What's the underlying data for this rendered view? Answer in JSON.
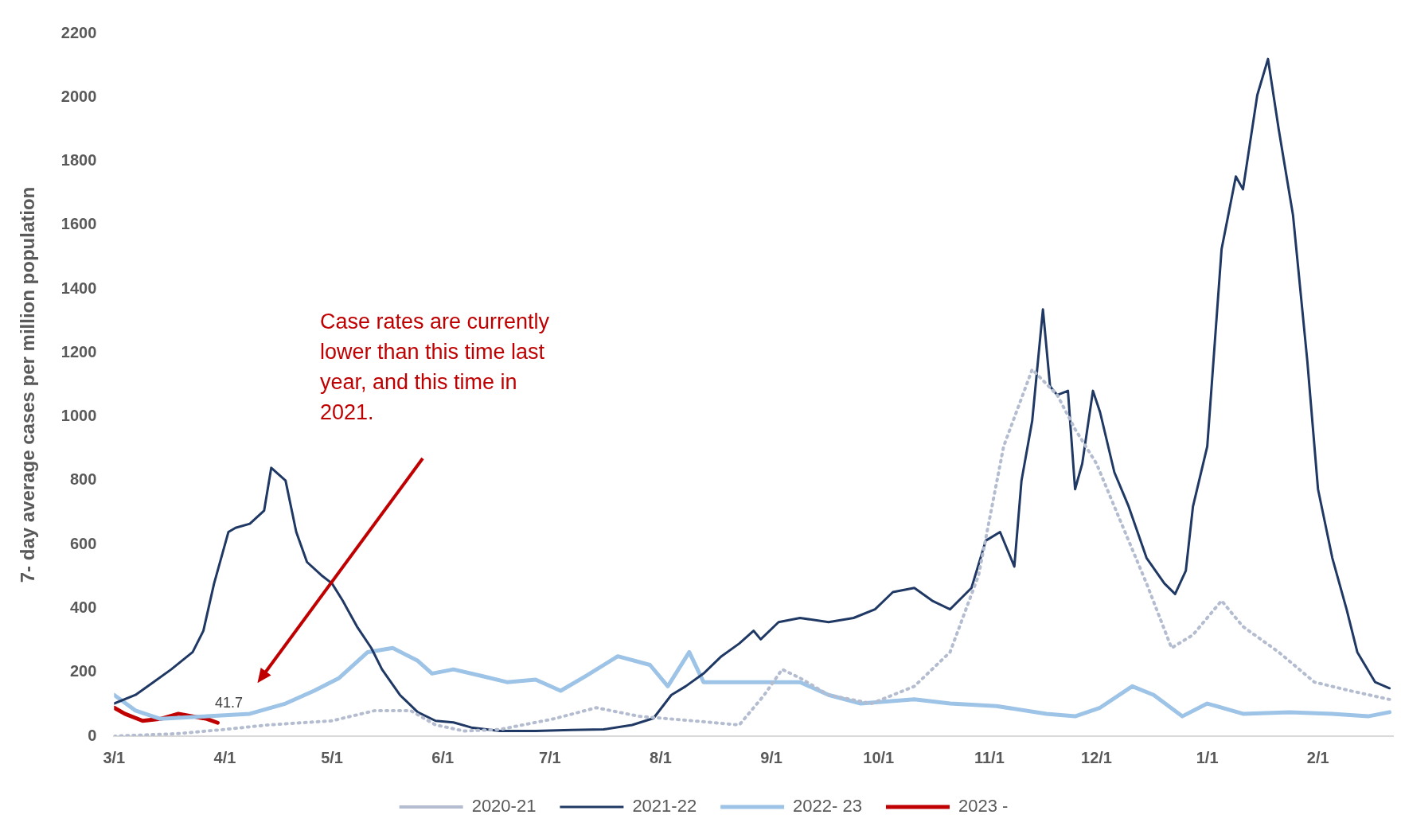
{
  "chart_data": {
    "type": "line",
    "ylabel": "7- day average cases per million population",
    "xlim": [
      "2021-03-01",
      "2022-02-22"
    ],
    "xticks": [
      {
        "value": "2021-03-01",
        "label": "3/1"
      },
      {
        "value": "2021-04-01",
        "label": "4/1"
      },
      {
        "value": "2021-05-01",
        "label": "5/1"
      },
      {
        "value": "2021-06-01",
        "label": "6/1"
      },
      {
        "value": "2021-07-01",
        "label": "7/1"
      },
      {
        "value": "2021-08-01",
        "label": "8/1"
      },
      {
        "value": "2021-09-01",
        "label": "9/1"
      },
      {
        "value": "2021-10-01",
        "label": "10/1"
      },
      {
        "value": "2021-11-01",
        "label": "11/1"
      },
      {
        "value": "2021-12-01",
        "label": "12/1"
      },
      {
        "value": "2022-01-01",
        "label": "1/1"
      },
      {
        "value": "2022-02-01",
        "label": "2/1"
      }
    ],
    "ylim": [
      0,
      2200
    ],
    "yticks": [
      0,
      200,
      400,
      600,
      800,
      1000,
      1200,
      1400,
      1600,
      1800,
      2000,
      2200
    ],
    "grid": false,
    "legend": "bottom",
    "marker": "none",
    "annotations": [
      "Case rates are currently lower than this time last year, and this time in 2021.",
      {
        "text": "41.7",
        "x": "2021-03-30",
        "y": 41.7
      }
    ],
    "series": [
      {
        "name": "2020-21",
        "color": "#b4bdd0",
        "line_style": "dotted",
        "x": [
          "2021-03-01",
          "2021-03-19",
          "2021-04-01",
          "2021-04-13",
          "2021-05-01",
          "2021-05-13",
          "2021-05-23",
          "2021-05-30",
          "2021-06-07",
          "2021-06-17",
          "2021-07-02",
          "2021-07-14",
          "2021-07-26",
          "2021-08-10",
          "2021-08-23",
          "2021-08-30",
          "2021-09-04",
          "2021-09-09",
          "2021-09-17",
          "2021-09-29",
          "2021-10-11",
          "2021-10-21",
          "2021-10-29",
          "2021-11-05",
          "2021-11-13",
          "2021-11-20",
          "2021-11-25",
          "2021-12-01",
          "2021-12-07",
          "2021-12-15",
          "2021-12-22",
          "2021-12-28",
          "2022-01-05",
          "2022-01-11",
          "2022-01-21",
          "2022-01-31",
          "2022-02-10",
          "2022-02-21"
        ],
        "values": [
          0,
          8,
          21,
          35,
          48,
          80,
          80,
          35,
          16,
          21,
          54,
          89,
          62,
          48,
          35,
          129,
          209,
          182,
          129,
          102,
          156,
          263,
          504,
          907,
          1148,
          1068,
          961,
          853,
          692,
          478,
          276,
          317,
          424,
          343,
          263,
          169,
          142,
          115
        ]
      },
      {
        "name": "2021-22",
        "color": "#1f3864",
        "line_style": "solid",
        "x": [
          "2021-03-01",
          "2021-03-07",
          "2021-03-12",
          "2021-03-17",
          "2021-03-23",
          "2021-03-26",
          "2021-03-29",
          "2021-04-02",
          "2021-04-04",
          "2021-04-08",
          "2021-04-12",
          "2021-04-14",
          "2021-04-18",
          "2021-04-21",
          "2021-04-24",
          "2021-04-28",
          "2021-05-01",
          "2021-05-04",
          "2021-05-08",
          "2021-05-12",
          "2021-05-15",
          "2021-05-20",
          "2021-05-25",
          "2021-05-30",
          "2021-06-04",
          "2021-06-09",
          "2021-06-17",
          "2021-06-27",
          "2021-07-07",
          "2021-07-16",
          "2021-07-24",
          "2021-07-30",
          "2021-08-04",
          "2021-08-08",
          "2021-08-13",
          "2021-08-18",
          "2021-08-23",
          "2021-08-27",
          "2021-08-29",
          "2021-09-03",
          "2021-09-09",
          "2021-09-17",
          "2021-09-24",
          "2021-09-30",
          "2021-10-05",
          "2021-10-11",
          "2021-10-16",
          "2021-10-21",
          "2021-10-27",
          "2021-10-31",
          "2021-11-04",
          "2021-11-08",
          "2021-11-10",
          "2021-11-13",
          "2021-11-16",
          "2021-11-18",
          "2021-11-20",
          "2021-11-23",
          "2021-11-25",
          "2021-11-27",
          "2021-11-30",
          "2021-12-02",
          "2021-12-06",
          "2021-12-10",
          "2021-12-15",
          "2021-12-20",
          "2021-12-23",
          "2021-12-26",
          "2021-12-28",
          "2022-01-01",
          "2022-01-05",
          "2022-01-09",
          "2022-01-11",
          "2022-01-15",
          "2022-01-18",
          "2022-01-21",
          "2022-01-25",
          "2022-01-29",
          "2022-02-01",
          "2022-02-05",
          "2022-02-09",
          "2022-02-12",
          "2022-02-17",
          "2022-02-21"
        ],
        "values": [
          102,
          129,
          169,
          209,
          263,
          330,
          478,
          639,
          652,
          665,
          706,
          840,
          800,
          639,
          545,
          504,
          478,
          424,
          343,
          276,
          209,
          129,
          75,
          48,
          43,
          27,
          16,
          16,
          19,
          21,
          35,
          56,
          129,
          156,
          196,
          250,
          290,
          330,
          303,
          357,
          370,
          357,
          370,
          397,
          451,
          464,
          424,
          397,
          464,
          612,
          639,
          531,
          800,
          987,
          1336,
          1095,
          1068,
          1081,
          773,
          853,
          1081,
          1014,
          826,
          719,
          558,
          478,
          445,
          518,
          719,
          907,
          1524,
          1752,
          1712,
          2007,
          2120,
          1900,
          1631,
          1175,
          773,
          558,
          397,
          263,
          169,
          150
        ]
      },
      {
        "name": "2022- 23",
        "color": "#9dc3e6",
        "line_style": "solid",
        "x": [
          "2021-03-01",
          "2021-03-07",
          "2021-03-14",
          "2021-03-27",
          "2021-04-08",
          "2021-04-18",
          "2021-04-26",
          "2021-05-03",
          "2021-05-11",
          "2021-05-18",
          "2021-05-25",
          "2021-05-29",
          "2021-06-04",
          "2021-06-12",
          "2021-06-19",
          "2021-06-27",
          "2021-07-04",
          "2021-07-11",
          "2021-07-20",
          "2021-07-29",
          "2021-08-03",
          "2021-08-09",
          "2021-08-13",
          "2021-08-23",
          "2021-09-02",
          "2021-09-09",
          "2021-09-17",
          "2021-09-26",
          "2021-10-11",
          "2021-10-21",
          "2021-11-03",
          "2021-11-17",
          "2021-11-25",
          "2021-12-02",
          "2021-12-11",
          "2021-12-17",
          "2021-12-25",
          "2022-01-01",
          "2022-01-11",
          "2022-01-24",
          "2022-02-05",
          "2022-02-15",
          "2022-02-21"
        ],
        "values": [
          129,
          80,
          54,
          62,
          70,
          102,
          142,
          182,
          263,
          276,
          236,
          196,
          209,
          188,
          169,
          177,
          142,
          188,
          250,
          223,
          156,
          263,
          169,
          169,
          169,
          169,
          129,
          102,
          115,
          102,
          94,
          70,
          62,
          89,
          156,
          129,
          62,
          102,
          70,
          75,
          70,
          62,
          75
        ]
      },
      {
        "name": "2023 -",
        "color": "#c00000",
        "line_style": "solid",
        "x": [
          "2021-03-01",
          "2021-03-04",
          "2021-03-09",
          "2021-03-14",
          "2021-03-19",
          "2021-03-23",
          "2021-03-27",
          "2021-03-30"
        ],
        "values": [
          89,
          70,
          48,
          54,
          70,
          62,
          54,
          41.7
        ]
      }
    ]
  }
}
